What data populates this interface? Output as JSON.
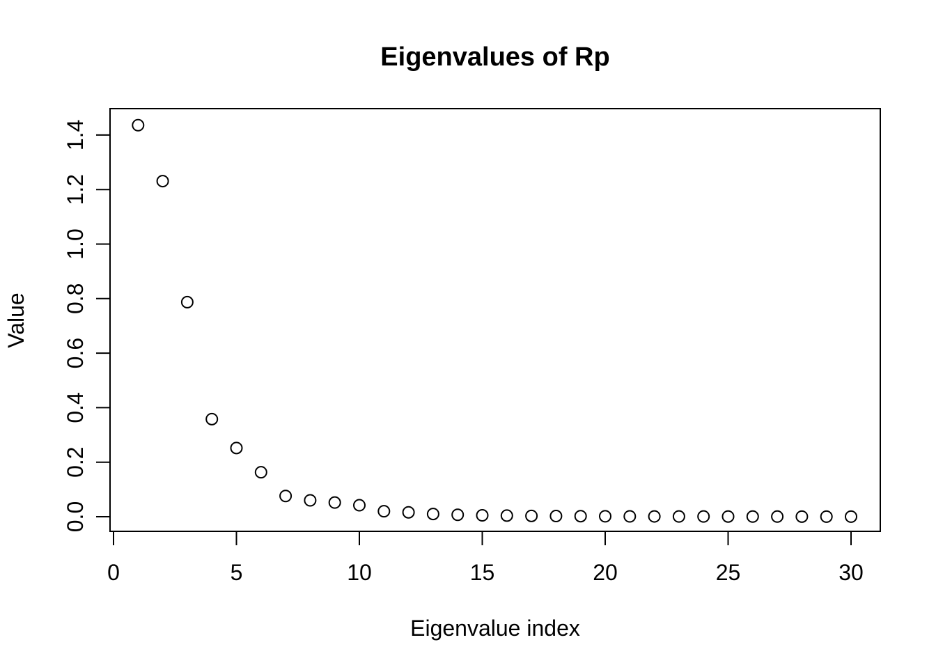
{
  "chart_data": {
    "type": "scatter",
    "title": "Eigenvalues of Rp",
    "xlabel": "Eigenvalue index",
    "ylabel": "Value",
    "marker": "open-circle",
    "grid": false,
    "legend": null,
    "xlim": [
      -0.2,
      31.2
    ],
    "ylim": [
      -0.05,
      1.49
    ],
    "xticks": [
      0,
      5,
      10,
      15,
      20,
      25,
      30
    ],
    "xtick_labels": [
      "0",
      "5",
      "10",
      "15",
      "20",
      "25",
      "30"
    ],
    "yticks": [
      0.0,
      0.2,
      0.4,
      0.6,
      0.8,
      1.0,
      1.2,
      1.4
    ],
    "ytick_labels": [
      "0.0",
      "0.2",
      "0.4",
      "0.6",
      "0.8",
      "1.0",
      "1.2",
      "1.4"
    ],
    "x": [
      1,
      2,
      3,
      4,
      5,
      6,
      7,
      8,
      9,
      10,
      11,
      12,
      13,
      14,
      15,
      16,
      17,
      18,
      19,
      20,
      21,
      22,
      23,
      24,
      25,
      26,
      27,
      28,
      29,
      30
    ],
    "y": [
      1.436,
      1.231,
      0.787,
      0.358,
      0.252,
      0.163,
      0.076,
      0.06,
      0.052,
      0.042,
      0.02,
      0.016,
      0.01,
      0.007,
      0.005,
      0.004,
      0.003,
      0.0025,
      0.002,
      0.0016,
      0.0013,
      0.0011,
      0.0009,
      0.0008,
      0.0007,
      0.0006,
      0.0005,
      0.0004,
      0.0003,
      0.0003
    ],
    "colors": {
      "background": "#ffffff",
      "axis": "#000000",
      "point_stroke": "#000000",
      "text": "#000000"
    }
  }
}
